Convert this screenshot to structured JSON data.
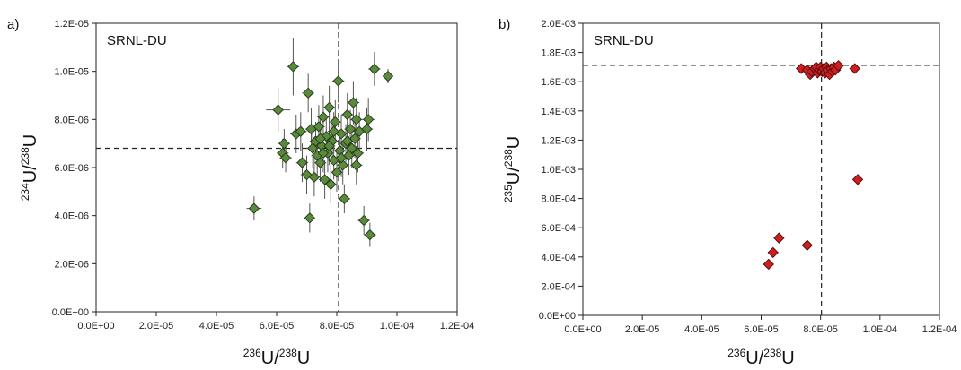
{
  "chart_data": [
    {
      "panel": "a)",
      "type": "scatter",
      "label": "SRNL-DU",
      "xlabel": {
        "pre": "236",
        "a": "U/",
        "post": "238",
        "b": "U"
      },
      "ylabel": {
        "pre": "234",
        "a": "U/",
        "post": "238",
        "b": "U"
      },
      "xlim": [
        0,
        0.00012
      ],
      "ylim": [
        0,
        1.2e-05
      ],
      "x_ticks": [
        "0.0E+00",
        "2.0E-05",
        "4.0E-05",
        "6.0E-05",
        "8.0E-05",
        "1.0E-04",
        "1.2E-04"
      ],
      "y_ticks": [
        "0.0E+00",
        "2.0E-06",
        "4.0E-06",
        "6.0E-06",
        "8.0E-06",
        "1.0E-05",
        "1.2E-05"
      ],
      "ref_x": 8.06e-05,
      "ref_y": 6.8e-06,
      "marker_color": "#5a8a3c",
      "points": [
        {
          "x": 5.25e-05,
          "y": 4.3e-06,
          "ex": 2.5e-06,
          "ey": 5e-07
        },
        {
          "x": 6.05e-05,
          "y": 8.4e-06,
          "ex": 4e-06,
          "ey": 9e-07
        },
        {
          "x": 6.2e-05,
          "y": 6.6e-06,
          "ex": 2e-06,
          "ey": 6e-07
        },
        {
          "x": 6.25e-05,
          "y": 7e-06,
          "ex": 2e-06,
          "ey": 6e-07
        },
        {
          "x": 6.3e-05,
          "y": 6.4e-06,
          "ex": 2e-06,
          "ey": 6e-07
        },
        {
          "x": 6.55e-05,
          "y": 1.02e-05,
          "ex": 2e-06,
          "ey": 1.2e-06
        },
        {
          "x": 6.65e-05,
          "y": 7.4e-06,
          "ex": 2e-06,
          "ey": 8e-07
        },
        {
          "x": 6.8e-05,
          "y": 7.5e-06,
          "ex": 2e-06,
          "ey": 8e-07
        },
        {
          "x": 6.85e-05,
          "y": 6.2e-06,
          "ex": 2e-06,
          "ey": 8e-07
        },
        {
          "x": 7e-05,
          "y": 5.7e-06,
          "ex": 2e-06,
          "ey": 8e-07
        },
        {
          "x": 7.05e-05,
          "y": 9.1e-06,
          "ex": 2e-06,
          "ey": 8e-07
        },
        {
          "x": 7.1e-05,
          "y": 3.9e-06,
          "ex": 1.5e-06,
          "ey": 6e-07
        },
        {
          "x": 7.15e-05,
          "y": 7.6e-06,
          "ex": 2e-06,
          "ey": 9e-07
        },
        {
          "x": 7.2e-05,
          "y": 6.8e-06,
          "ex": 2e-06,
          "ey": 8e-07
        },
        {
          "x": 7.25e-05,
          "y": 5.6e-06,
          "ex": 2e-06,
          "ey": 8e-07
        },
        {
          "x": 7.3e-05,
          "y": 7.1e-06,
          "ex": 2e-06,
          "ey": 8e-07
        },
        {
          "x": 7.35e-05,
          "y": 6.5e-06,
          "ex": 2e-06,
          "ey": 8e-07
        },
        {
          "x": 7.4e-05,
          "y": 7.7e-06,
          "ex": 2e-06,
          "ey": 9e-07
        },
        {
          "x": 7.45e-05,
          "y": 6.2e-06,
          "ex": 2e-06,
          "ey": 8e-07
        },
        {
          "x": 7.5e-05,
          "y": 6.9e-06,
          "ex": 2e-06,
          "ey": 8e-07
        },
        {
          "x": 7.55e-05,
          "y": 8.1e-06,
          "ex": 2e-06,
          "ey": 9e-07
        },
        {
          "x": 7.6e-05,
          "y": 5.5e-06,
          "ex": 2e-06,
          "ey": 8e-07
        },
        {
          "x": 7.65e-05,
          "y": 7.3e-06,
          "ex": 2e-06,
          "ey": 8e-07
        },
        {
          "x": 7.7e-05,
          "y": 6.6e-06,
          "ex": 2e-06,
          "ey": 8e-07
        },
        {
          "x": 7.75e-05,
          "y": 8.5e-06,
          "ex": 2e-06,
          "ey": 9e-07
        },
        {
          "x": 7.8e-05,
          "y": 5.3e-06,
          "ex": 2e-06,
          "ey": 8e-07
        },
        {
          "x": 7.85e-05,
          "y": 7.1e-06,
          "ex": 2e-06,
          "ey": 8e-07
        },
        {
          "x": 7.9e-05,
          "y": 6.3e-06,
          "ex": 2e-06,
          "ey": 8e-07
        },
        {
          "x": 7.95e-05,
          "y": 7.9e-06,
          "ex": 2e-06,
          "ey": 9e-07
        },
        {
          "x": 8e-05,
          "y": 5.8e-06,
          "ex": 2e-06,
          "ey": 8e-07
        },
        {
          "x": 8.05e-05,
          "y": 9.6e-06,
          "ex": 2e-06,
          "ey": 9e-07
        },
        {
          "x": 8.1e-05,
          "y": 6.7e-06,
          "ex": 2e-06,
          "ey": 8e-07
        },
        {
          "x": 8.15e-05,
          "y": 7.4e-06,
          "ex": 2e-06,
          "ey": 8e-07
        },
        {
          "x": 8.2e-05,
          "y": 6.1e-06,
          "ex": 2e-06,
          "ey": 8e-07
        },
        {
          "x": 8.25e-05,
          "y": 4.7e-06,
          "ex": 2e-06,
          "ey": 6e-07
        },
        {
          "x": 8.3e-05,
          "y": 7e-06,
          "ex": 2e-06,
          "ey": 8e-07
        },
        {
          "x": 8.35e-05,
          "y": 8.2e-06,
          "ex": 2e-06,
          "ey": 9e-07
        },
        {
          "x": 8.4e-05,
          "y": 6.5e-06,
          "ex": 2e-06,
          "ey": 8e-07
        },
        {
          "x": 8.45e-05,
          "y": 7.6e-06,
          "ex": 2e-06,
          "ey": 8e-07
        },
        {
          "x": 8.5e-05,
          "y": 6.8e-06,
          "ex": 2e-06,
          "ey": 8e-07
        },
        {
          "x": 8.55e-05,
          "y": 8.7e-06,
          "ex": 2e-06,
          "ey": 9e-07
        },
        {
          "x": 8.6e-05,
          "y": 7.2e-06,
          "ex": 2e-06,
          "ey": 8e-07
        },
        {
          "x": 8.65e-05,
          "y": 8e-06,
          "ex": 2e-06,
          "ey": 9e-07
        },
        {
          "x": 8.7e-05,
          "y": 6.6e-06,
          "ex": 2e-06,
          "ey": 8e-07
        },
        {
          "x": 8.75e-05,
          "y": 7.5e-06,
          "ex": 2e-06,
          "ey": 8e-07
        },
        {
          "x": 8.9e-05,
          "y": 3.8e-06,
          "ex": 2e-06,
          "ey": 6e-07
        },
        {
          "x": 9e-05,
          "y": 7.6e-06,
          "ex": 2e-06,
          "ey": 9e-07
        },
        {
          "x": 9.05e-05,
          "y": 8e-06,
          "ex": 2e-06,
          "ey": 9e-07
        },
        {
          "x": 9.1e-05,
          "y": 3.2e-06,
          "ex": 2e-06,
          "ey": 5e-07
        },
        {
          "x": 9.25e-05,
          "y": 1.01e-05,
          "ex": 2e-06,
          "ey": 7e-07
        },
        {
          "x": 9.7e-05,
          "y": 9.8e-06,
          "ex": 1.5e-06,
          "ey": 3e-07
        },
        {
          "x": 7.75e-05,
          "y": 6.9e-06,
          "ex": 2e-06,
          "ey": 8e-07
        },
        {
          "x": 7.9e-05,
          "y": 7.5e-06,
          "ex": 2e-06,
          "ey": 8e-07
        },
        {
          "x": 8.15e-05,
          "y": 6.4e-06,
          "ex": 2e-06,
          "ey": 8e-07
        },
        {
          "x": 8.35e-05,
          "y": 7.1e-06,
          "ex": 2e-06,
          "ey": 8e-07
        },
        {
          "x": 7.55e-05,
          "y": 6.6e-06,
          "ex": 2e-06,
          "ey": 8e-07
        },
        {
          "x": 7.45e-05,
          "y": 7.2e-06,
          "ex": 2e-06,
          "ey": 8e-07
        },
        {
          "x": 8.65e-05,
          "y": 6.1e-06,
          "ex": 2e-06,
          "ey": 8e-07
        }
      ]
    },
    {
      "panel": "b)",
      "type": "scatter",
      "label": "SRNL-DU",
      "xlabel": {
        "pre": "236",
        "a": "U/",
        "post": "238",
        "b": "U"
      },
      "ylabel": {
        "pre": "235",
        "a": "U/",
        "post": "238",
        "b": "U"
      },
      "xlim": [
        0,
        0.00012
      ],
      "ylim": [
        0,
        0.002
      ],
      "x_ticks": [
        "0.0E+00",
        "2.0E-05",
        "4.0E-05",
        "6.0E-05",
        "8.0E-05",
        "1.0E-04",
        "1.2E-04"
      ],
      "y_ticks": [
        "0.0E+00",
        "2.0E-04",
        "4.0E-04",
        "6.0E-04",
        "8.0E-04",
        "1.0E-03",
        "1.2E-03",
        "1.4E-03",
        "1.6E-03",
        "1.8E-03",
        "2.0E-03"
      ],
      "ref_x": 8.03e-05,
      "ref_y": 0.001712,
      "marker_color": "#cc1f1f",
      "points": [
        {
          "x": 7.35e-05,
          "y": 0.00169,
          "ex": 1e-06,
          "ey": 8e-06
        },
        {
          "x": 7.55e-05,
          "y": 0.00168,
          "ex": 1e-06,
          "ey": 8e-06
        },
        {
          "x": 7.65e-05,
          "y": 0.00165,
          "ex": 1e-06,
          "ey": 8e-06
        },
        {
          "x": 7.7e-05,
          "y": 0.00167,
          "ex": 1e-06,
          "ey": 8e-06
        },
        {
          "x": 7.8e-05,
          "y": 0.00169,
          "ex": 1e-06,
          "ey": 8e-06
        },
        {
          "x": 7.85e-05,
          "y": 0.0017,
          "ex": 1e-06,
          "ey": 8e-06
        },
        {
          "x": 7.9e-05,
          "y": 0.00166,
          "ex": 1e-06,
          "ey": 8e-06
        },
        {
          "x": 7.95e-05,
          "y": 0.00168,
          "ex": 1e-06,
          "ey": 8e-06
        },
        {
          "x": 8e-05,
          "y": 0.0017,
          "ex": 1e-06,
          "ey": 8e-06
        },
        {
          "x": 8.05e-05,
          "y": 0.00167,
          "ex": 1e-06,
          "ey": 8e-06
        },
        {
          "x": 8.1e-05,
          "y": 0.00169,
          "ex": 1e-06,
          "ey": 8e-06
        },
        {
          "x": 8.15e-05,
          "y": 0.00166,
          "ex": 1e-06,
          "ey": 8e-06
        },
        {
          "x": 8.2e-05,
          "y": 0.0017,
          "ex": 1e-06,
          "ey": 8e-06
        },
        {
          "x": 8.25e-05,
          "y": 0.00168,
          "ex": 1e-06,
          "ey": 8e-06
        },
        {
          "x": 8.3e-05,
          "y": 0.00165,
          "ex": 1e-06,
          "ey": 8e-06
        },
        {
          "x": 8.35e-05,
          "y": 0.00169,
          "ex": 1e-06,
          "ey": 8e-06
        },
        {
          "x": 8.4e-05,
          "y": 0.00167,
          "ex": 1e-06,
          "ey": 8e-06
        },
        {
          "x": 8.45e-05,
          "y": 0.0017,
          "ex": 1e-06,
          "ey": 8e-06
        },
        {
          "x": 8.5e-05,
          "y": 0.00168,
          "ex": 1e-06,
          "ey": 8e-06
        },
        {
          "x": 8.6e-05,
          "y": 0.00171,
          "ex": 1e-06,
          "ey": 8e-06
        },
        {
          "x": 9.15e-05,
          "y": 0.00169,
          "ex": 1e-06,
          "ey": 8e-06
        },
        {
          "x": 6.25e-05,
          "y": 0.00035,
          "ex": 1e-06,
          "ey": 8e-06
        },
        {
          "x": 6.4e-05,
          "y": 0.00043,
          "ex": 1e-06,
          "ey": 8e-06
        },
        {
          "x": 6.6e-05,
          "y": 0.00053,
          "ex": 1e-06,
          "ey": 8e-06
        },
        {
          "x": 7.55e-05,
          "y": 0.00048,
          "ex": 1e-06,
          "ey": 8e-06
        },
        {
          "x": 9.25e-05,
          "y": 0.00093,
          "ex": 1e-06,
          "ey": 8e-06
        }
      ]
    }
  ]
}
